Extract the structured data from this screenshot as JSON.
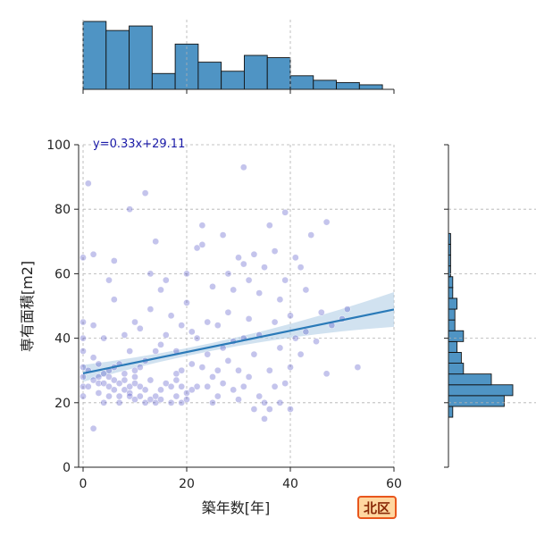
{
  "chart_data": {
    "type": "scatter",
    "xlabel": "築年数[年]",
    "ylabel": "専有面積[m2]",
    "xlim": [
      0,
      60
    ],
    "ylim": [
      0,
      100
    ],
    "xticks": [
      "0",
      "20",
      "40",
      "60"
    ],
    "yticks": [
      "0",
      "20",
      "40",
      "60",
      "80",
      "100"
    ],
    "grid": true,
    "regression": {
      "slope": 0.33,
      "intercept": 29.11,
      "label": "y=0.33x+29.11",
      "x_range": [
        0,
        60
      ]
    },
    "points": [
      [
        0,
        65
      ],
      [
        0,
        45
      ],
      [
        0,
        40
      ],
      [
        0,
        28
      ],
      [
        0,
        25
      ],
      [
        0,
        22
      ],
      [
        0,
        31
      ],
      [
        0,
        36
      ],
      [
        1,
        88
      ],
      [
        1,
        25
      ],
      [
        1,
        30
      ],
      [
        2,
        12
      ],
      [
        2,
        66
      ],
      [
        2,
        44
      ],
      [
        2,
        34
      ],
      [
        2,
        27
      ],
      [
        3,
        28
      ],
      [
        3,
        32
      ],
      [
        3,
        23
      ],
      [
        3,
        26
      ],
      [
        4,
        26
      ],
      [
        4,
        29
      ],
      [
        4,
        20
      ],
      [
        4,
        40
      ],
      [
        5,
        30
      ],
      [
        5,
        25
      ],
      [
        5,
        22
      ],
      [
        5,
        28
      ],
      [
        5,
        58
      ],
      [
        6,
        64
      ],
      [
        6,
        52
      ],
      [
        6,
        27
      ],
      [
        6,
        24
      ],
      [
        6,
        31
      ],
      [
        7,
        26
      ],
      [
        7,
        22
      ],
      [
        7,
        20
      ],
      [
        7,
        32
      ],
      [
        8,
        27
      ],
      [
        8,
        24
      ],
      [
        8,
        29
      ],
      [
        8,
        41
      ],
      [
        9,
        25
      ],
      [
        9,
        23
      ],
      [
        9,
        22
      ],
      [
        9,
        80
      ],
      [
        9,
        36
      ],
      [
        10,
        26
      ],
      [
        10,
        28
      ],
      [
        10,
        30
      ],
      [
        10,
        45
      ],
      [
        10,
        21
      ],
      [
        11,
        25
      ],
      [
        11,
        22
      ],
      [
        11,
        31
      ],
      [
        11,
        43
      ],
      [
        12,
        24
      ],
      [
        12,
        20
      ],
      [
        12,
        33
      ],
      [
        12,
        85
      ],
      [
        13,
        27
      ],
      [
        13,
        21
      ],
      [
        13,
        49
      ],
      [
        13,
        60
      ],
      [
        14,
        22
      ],
      [
        14,
        20
      ],
      [
        14,
        36
      ],
      [
        14,
        70
      ],
      [
        15,
        24
      ],
      [
        15,
        21
      ],
      [
        15,
        55
      ],
      [
        15,
        38
      ],
      [
        16,
        26
      ],
      [
        16,
        58
      ],
      [
        16,
        41
      ],
      [
        17,
        20
      ],
      [
        17,
        25
      ],
      [
        17,
        47
      ],
      [
        18,
        22
      ],
      [
        18,
        27
      ],
      [
        18,
        29
      ],
      [
        18,
        36
      ],
      [
        19,
        20
      ],
      [
        19,
        25
      ],
      [
        19,
        30
      ],
      [
        19,
        44
      ],
      [
        20,
        21
      ],
      [
        20,
        23
      ],
      [
        20,
        51
      ],
      [
        20,
        60
      ],
      [
        21,
        24
      ],
      [
        21,
        32
      ],
      [
        21,
        42
      ],
      [
        22,
        25
      ],
      [
        22,
        68
      ],
      [
        22,
        40
      ],
      [
        23,
        69
      ],
      [
        23,
        75
      ],
      [
        23,
        31
      ],
      [
        24,
        45
      ],
      [
        24,
        35
      ],
      [
        24,
        25
      ],
      [
        25,
        20
      ],
      [
        25,
        28
      ],
      [
        25,
        56
      ],
      [
        26,
        30
      ],
      [
        26,
        44
      ],
      [
        26,
        22
      ],
      [
        27,
        72
      ],
      [
        27,
        37
      ],
      [
        27,
        26
      ],
      [
        28,
        33
      ],
      [
        28,
        48
      ],
      [
        28,
        60
      ],
      [
        29,
        24
      ],
      [
        29,
        55
      ],
      [
        29,
        39
      ],
      [
        30,
        65
      ],
      [
        30,
        30
      ],
      [
        30,
        21
      ],
      [
        31,
        93
      ],
      [
        31,
        63
      ],
      [
        31,
        40
      ],
      [
        31,
        25
      ],
      [
        32,
        58
      ],
      [
        32,
        28
      ],
      [
        32,
        46
      ],
      [
        33,
        18
      ],
      [
        33,
        35
      ],
      [
        33,
        66
      ],
      [
        34,
        22
      ],
      [
        34,
        41
      ],
      [
        34,
        54
      ],
      [
        35,
        15
      ],
      [
        35,
        20
      ],
      [
        35,
        62
      ],
      [
        36,
        18
      ],
      [
        36,
        75
      ],
      [
        36,
        30
      ],
      [
        37,
        25
      ],
      [
        37,
        45
      ],
      [
        37,
        67
      ],
      [
        38,
        20
      ],
      [
        38,
        52
      ],
      [
        38,
        37
      ],
      [
        39,
        26
      ],
      [
        39,
        79
      ],
      [
        39,
        58
      ],
      [
        40,
        18
      ],
      [
        40,
        31
      ],
      [
        40,
        47
      ],
      [
        41,
        65
      ],
      [
        41,
        40
      ],
      [
        42,
        35
      ],
      [
        42,
        62
      ],
      [
        43,
        55
      ],
      [
        43,
        42
      ],
      [
        44,
        72
      ],
      [
        45,
        39
      ],
      [
        46,
        48
      ],
      [
        47,
        29
      ],
      [
        47,
        76
      ],
      [
        48,
        44
      ],
      [
        50,
        46
      ],
      [
        51,
        49
      ],
      [
        53,
        31
      ]
    ],
    "hist_top_counts": [
      30,
      26,
      28,
      7,
      20,
      12,
      8,
      15,
      14,
      6,
      4,
      3,
      2
    ],
    "hist_right_counts": [
      2,
      26,
      30,
      20,
      7,
      6,
      4,
      7,
      3,
      3,
      4,
      2,
      2,
      1,
      1,
      1,
      1
    ]
  },
  "badge": {
    "label": "北区",
    "colors": {
      "fill": "#ffd7a0",
      "border": "#e8561c",
      "text": "#8a2a08"
    }
  },
  "colors": {
    "scatter": "#3a3ac0",
    "line": "#2a7ab8",
    "ci": "#b3cfe6",
    "hist": "#4f94c4",
    "eq": "#1a1aa8"
  }
}
